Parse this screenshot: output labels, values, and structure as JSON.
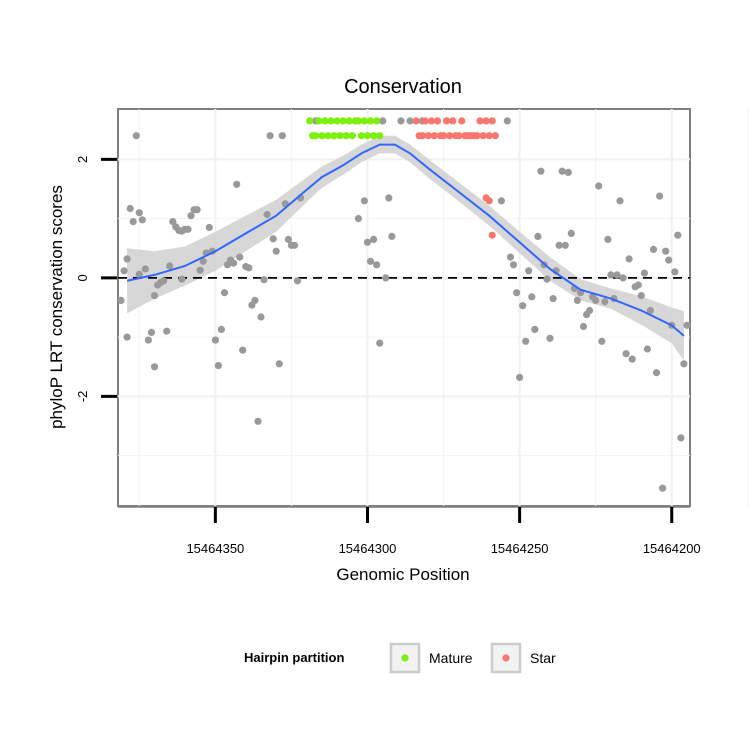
{
  "chart_data": {
    "type": "scatter",
    "title": "Conservation",
    "xlabel": "Genomic Position",
    "ylabel": "phyloP LRT conservation scores",
    "x_reversed": true,
    "xlim": [
      15464382,
      15464194
    ],
    "ylim": [
      -3.85,
      2.85
    ],
    "x_ticks": [
      15464350,
      15464300,
      15464250,
      15464200
    ],
    "x_tick_labels": [
      "15464350",
      "15464300",
      "15464250",
      "15464200"
    ],
    "y_ticks": [
      -2,
      0,
      2
    ],
    "y_tick_labels": [
      "-2",
      "0",
      "2"
    ],
    "grid": true,
    "reference_line": {
      "y": 0,
      "style": "dashed"
    },
    "legend": {
      "title": "Hairpin partition",
      "position": "bottom",
      "entries": [
        {
          "label": "Mature",
          "color": "#7cf00a"
        },
        {
          "label": "Star",
          "color": "#f8766d"
        }
      ]
    },
    "colors": {
      "background_points": "#999999",
      "mature": "#7cf00a",
      "star": "#f8766d",
      "smooth_line": "#3366ff",
      "confidence_band": "#d0d0d0"
    },
    "series": [
      {
        "role": "background",
        "points": [
          [
            15464381,
            -0.38
          ],
          [
            15464380,
            0.12
          ],
          [
            15464379,
            0.32
          ],
          [
            15464379,
            -1.0
          ],
          [
            15464378,
            1.17
          ],
          [
            15464377,
            0.95
          ],
          [
            15464376,
            2.4
          ],
          [
            15464375,
            1.1
          ],
          [
            15464375,
            0.06
          ],
          [
            15464374,
            0.98
          ],
          [
            15464373,
            0.15
          ],
          [
            15464372,
            -1.05
          ],
          [
            15464371,
            -0.92
          ],
          [
            15464370,
            -1.5
          ],
          [
            15464370,
            -0.3
          ],
          [
            15464369,
            -0.12
          ],
          [
            15464368,
            -0.08
          ],
          [
            15464367,
            -0.05
          ],
          [
            15464366,
            -0.9
          ],
          [
            15464365,
            0.2
          ],
          [
            15464364,
            0.95
          ],
          [
            15464363,
            0.86
          ],
          [
            15464362,
            0.8
          ],
          [
            15464361,
            -0.02
          ],
          [
            15464361,
            0.79
          ],
          [
            15464360,
            0.82
          ],
          [
            15464359,
            0.82
          ],
          [
            15464358,
            1.05
          ],
          [
            15464357,
            1.15
          ],
          [
            15464356,
            1.15
          ],
          [
            15464355,
            0.13
          ],
          [
            15464354,
            0.28
          ],
          [
            15464353,
            0.42
          ],
          [
            15464352,
            0.85
          ],
          [
            15464351,
            0.45
          ],
          [
            15464350,
            -1.05
          ],
          [
            15464349,
            -1.48
          ],
          [
            15464348,
            -0.87
          ],
          [
            15464347,
            -0.25
          ],
          [
            15464346,
            0.22
          ],
          [
            15464345,
            0.3
          ],
          [
            15464344,
            0.25
          ],
          [
            15464343,
            1.58
          ],
          [
            15464342,
            0.35
          ],
          [
            15464341,
            -1.22
          ],
          [
            15464340,
            0.19
          ],
          [
            15464339,
            0.17
          ],
          [
            15464338,
            -0.46
          ],
          [
            15464337,
            -0.38
          ],
          [
            15464336,
            -2.42
          ],
          [
            15464335,
            -0.66
          ],
          [
            15464334,
            -0.03
          ],
          [
            15464333,
            1.07
          ],
          [
            15464332,
            2.4
          ],
          [
            15464331,
            0.66
          ],
          [
            15464330,
            0.45
          ],
          [
            15464329,
            -1.45
          ],
          [
            15464328,
            2.4
          ],
          [
            15464327,
            1.25
          ],
          [
            15464326,
            0.65
          ],
          [
            15464325,
            0.55
          ],
          [
            15464324,
            0.55
          ],
          [
            15464323,
            -0.05
          ],
          [
            15464322,
            1.35
          ],
          [
            15464317,
            2.65
          ],
          [
            15464303,
            1.0
          ],
          [
            15464301,
            1.3
          ],
          [
            15464300,
            0.6
          ],
          [
            15464299,
            0.28
          ],
          [
            15464298,
            0.65
          ],
          [
            15464297,
            0.22
          ],
          [
            15464296,
            -1.1
          ],
          [
            15464295,
            2.65
          ],
          [
            15464294,
            0.0
          ],
          [
            15464293,
            1.35
          ],
          [
            15464292,
            0.7
          ],
          [
            15464289,
            2.65
          ],
          [
            15464286,
            2.65
          ],
          [
            15464282,
            2.65
          ],
          [
            15464256,
            1.3
          ],
          [
            15464254,
            2.65
          ],
          [
            15464253,
            0.35
          ],
          [
            15464252,
            0.22
          ],
          [
            15464251,
            -0.25
          ],
          [
            15464250,
            -1.68
          ],
          [
            15464249,
            -0.47
          ],
          [
            15464248,
            -1.07
          ],
          [
            15464247,
            0.12
          ],
          [
            15464246,
            -0.32
          ],
          [
            15464245,
            -0.87
          ],
          [
            15464244,
            0.7
          ],
          [
            15464243,
            1.8
          ],
          [
            15464242,
            0.22
          ],
          [
            15464241,
            -0.02
          ],
          [
            15464240,
            -1.02
          ],
          [
            15464239,
            -0.35
          ],
          [
            15464238,
            0.12
          ],
          [
            15464237,
            0.55
          ],
          [
            15464236,
            1.8
          ],
          [
            15464235,
            0.55
          ],
          [
            15464234,
            1.78
          ],
          [
            15464233,
            0.75
          ],
          [
            15464232,
            -0.18
          ],
          [
            15464231,
            -0.38
          ],
          [
            15464230,
            -0.25
          ],
          [
            15464229,
            -0.82
          ],
          [
            15464228,
            -0.62
          ],
          [
            15464227,
            -0.55
          ],
          [
            15464226,
            -0.32
          ],
          [
            15464225,
            -0.38
          ],
          [
            15464224,
            1.55
          ],
          [
            15464223,
            -1.07
          ],
          [
            15464222,
            -0.4
          ],
          [
            15464221,
            0.65
          ],
          [
            15464220,
            0.05
          ],
          [
            15464219,
            -0.35
          ],
          [
            15464218,
            0.05
          ],
          [
            15464217,
            1.3
          ],
          [
            15464216,
            0.0
          ],
          [
            15464215,
            -1.28
          ],
          [
            15464214,
            0.32
          ],
          [
            15464213,
            -1.37
          ],
          [
            15464212,
            -0.15
          ],
          [
            15464211,
            -0.12
          ],
          [
            15464210,
            -0.3
          ],
          [
            15464209,
            0.08
          ],
          [
            15464208,
            -1.2
          ],
          [
            15464207,
            -0.55
          ],
          [
            15464206,
            0.48
          ],
          [
            15464205,
            -1.6
          ],
          [
            15464204,
            1.38
          ],
          [
            15464203,
            -3.55
          ],
          [
            15464202,
            0.45
          ],
          [
            15464201,
            0.3
          ],
          [
            15464200,
            -0.8
          ],
          [
            15464199,
            0.1
          ],
          [
            15464198,
            0.72
          ],
          [
            15464197,
            -2.7
          ],
          [
            15464196,
            -1.45
          ],
          [
            15464195,
            -0.8
          ]
        ]
      },
      {
        "name": "Mature",
        "points": [
          [
            15464319,
            2.65
          ],
          [
            15464318,
            2.4
          ],
          [
            15464317,
            2.4
          ],
          [
            15464316,
            2.65
          ],
          [
            15464315,
            2.4
          ],
          [
            15464314,
            2.65
          ],
          [
            15464313,
            2.4
          ],
          [
            15464312,
            2.65
          ],
          [
            15464311,
            2.4
          ],
          [
            15464310,
            2.65
          ],
          [
            15464309,
            2.4
          ],
          [
            15464308,
            2.65
          ],
          [
            15464307,
            2.4
          ],
          [
            15464306,
            2.65
          ],
          [
            15464305,
            2.4
          ],
          [
            15464304,
            2.65
          ],
          [
            15464303,
            2.65
          ],
          [
            15464302,
            2.4
          ],
          [
            15464301,
            2.65
          ],
          [
            15464300,
            2.4
          ],
          [
            15464299,
            2.65
          ],
          [
            15464298,
            2.4
          ],
          [
            15464297,
            2.65
          ],
          [
            15464296,
            2.4
          ]
        ]
      },
      {
        "name": "Star",
        "points": [
          [
            15464284,
            2.65
          ],
          [
            15464283,
            2.4
          ],
          [
            15464282,
            2.4
          ],
          [
            15464281,
            2.65
          ],
          [
            15464280,
            2.4
          ],
          [
            15464279,
            2.65
          ],
          [
            15464278,
            2.4
          ],
          [
            15464277,
            2.65
          ],
          [
            15464276,
            2.4
          ],
          [
            15464275,
            2.4
          ],
          [
            15464274,
            2.65
          ],
          [
            15464273,
            2.4
          ],
          [
            15464272,
            2.65
          ],
          [
            15464271,
            2.4
          ],
          [
            15464270,
            2.4
          ],
          [
            15464269,
            2.65
          ],
          [
            15464268,
            2.4
          ],
          [
            15464267,
            2.4
          ],
          [
            15464266,
            2.4
          ],
          [
            15464265,
            2.4
          ],
          [
            15464264,
            2.4
          ],
          [
            15464263,
            2.65
          ],
          [
            15464262,
            2.4
          ],
          [
            15464261,
            2.65
          ],
          [
            15464260,
            2.4
          ],
          [
            15464259,
            2.65
          ],
          [
            15464258,
            2.4
          ],
          [
            15464261,
            1.35
          ],
          [
            15464260,
            1.3
          ],
          [
            15464259,
            0.72
          ]
        ]
      }
    ],
    "smooth": {
      "x": [
        15464379,
        15464370,
        15464360,
        15464350,
        15464340,
        15464330,
        15464322,
        15464315,
        15464308,
        15464302,
        15464296,
        15464291,
        15464286,
        15464280,
        15464270,
        15464260,
        15464250,
        15464240,
        15464230,
        15464220,
        15464210,
        15464200,
        15464196
      ],
      "y": [
        -0.05,
        0.05,
        0.2,
        0.45,
        0.75,
        1.05,
        1.4,
        1.7,
        1.9,
        2.1,
        2.25,
        2.25,
        2.1,
        1.85,
        1.45,
        1.05,
        0.6,
        0.15,
        -0.2,
        -0.35,
        -0.55,
        -0.8,
        -0.98
      ],
      "band": [
        0.55,
        0.4,
        0.33,
        0.33,
        0.3,
        0.27,
        0.22,
        0.18,
        0.16,
        0.15,
        0.15,
        0.15,
        0.15,
        0.16,
        0.16,
        0.17,
        0.18,
        0.2,
        0.18,
        0.17,
        0.24,
        0.3,
        0.42
      ]
    }
  }
}
